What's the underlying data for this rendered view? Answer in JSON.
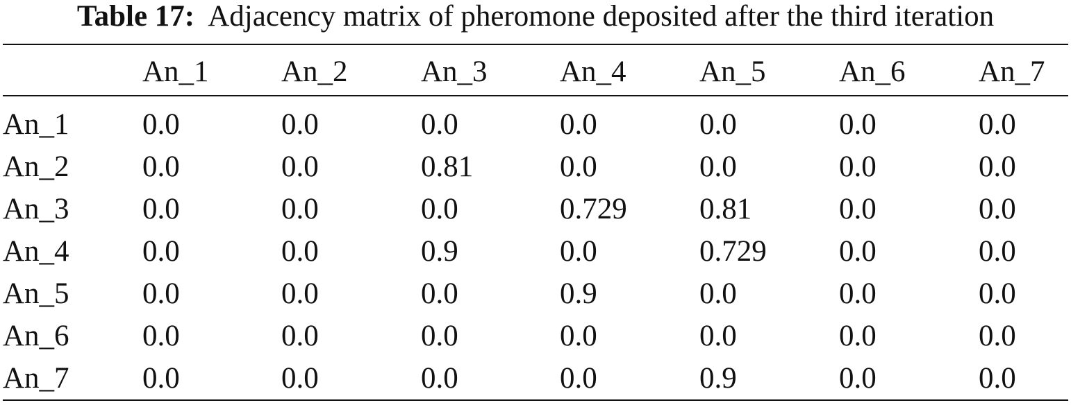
{
  "table": {
    "caption_label": "Table 17:",
    "caption_text": "Adjacency matrix of pheromone deposited after the third iteration",
    "header": [
      "An_1",
      "An_2",
      "An_3",
      "An_4",
      "An_5",
      "An_6",
      "An_7"
    ],
    "rows": [
      {
        "label": "An_1",
        "values": [
          "0.0",
          "0.0",
          "0.0",
          "0.0",
          "0.0",
          "0.0",
          "0.0"
        ]
      },
      {
        "label": "An_2",
        "values": [
          "0.0",
          "0.0",
          "0.81",
          "0.0",
          "0.0",
          "0.0",
          "0.0"
        ]
      },
      {
        "label": "An_3",
        "values": [
          "0.0",
          "0.0",
          "0.0",
          "0.729",
          "0.81",
          "0.0",
          "0.0"
        ]
      },
      {
        "label": "An_4",
        "values": [
          "0.0",
          "0.0",
          "0.9",
          "0.0",
          "0.729",
          "0.0",
          "0.0"
        ]
      },
      {
        "label": "An_5",
        "values": [
          "0.0",
          "0.0",
          "0.0",
          "0.9",
          "0.0",
          "0.0",
          "0.0"
        ]
      },
      {
        "label": "An_6",
        "values": [
          "0.0",
          "0.0",
          "0.0",
          "0.0",
          "0.0",
          "0.0",
          "0.0"
        ]
      },
      {
        "label": "An_7",
        "values": [
          "0.0",
          "0.0",
          "0.0",
          "0.0",
          "0.9",
          "0.0",
          "0.0"
        ]
      }
    ]
  }
}
